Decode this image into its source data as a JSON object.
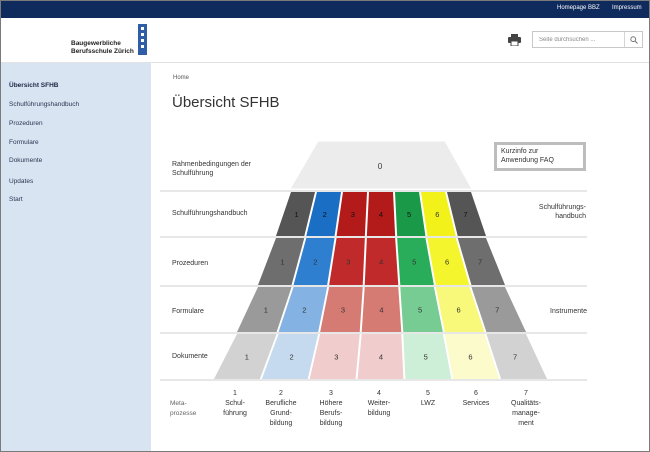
{
  "topbar": {
    "link1": "Homepage BBZ",
    "link2": "Impressum"
  },
  "header": {
    "logo_line1": "Baugewerbliche",
    "logo_line2": "Berufsschule Zürich",
    "search_placeholder": "Seite durchsuchen ..."
  },
  "sidebar": {
    "items": [
      {
        "label": "Übersicht SFHB",
        "active": true
      },
      {
        "label": "Schulführungshandbuch"
      },
      {
        "label": "Prozeduren"
      },
      {
        "label": "Formulare"
      },
      {
        "label": "Dokumente"
      },
      {
        "label": "Updates"
      },
      {
        "label": "Start"
      }
    ]
  },
  "breadcrumb": "Home",
  "page_title": "Übersicht SFHB",
  "pyramid": {
    "top_cell": "0",
    "row_labels": {
      "rahmen": [
        "Rahmenbedingungen der",
        "Schulführung"
      ],
      "sfhb": "Schulführungshandbuch",
      "prozeduren": "Prozeduren",
      "formulare": "Formulare",
      "dokumente": "Dokumente"
    },
    "right_labels": {
      "sfhb": [
        "Schulführungs-",
        "handbuch"
      ],
      "instrumente": "Instrumente"
    },
    "kurzinfo": [
      "Kurzinfo zur",
      "Anwendung FAQ"
    ],
    "cell_numbers": [
      "1",
      "2",
      "3",
      "4",
      "5",
      "6",
      "7"
    ],
    "colors": {
      "row1": [
        "#555555",
        "#1a6fc4",
        "#b31a1a",
        "#b31a1a",
        "#1a9a48",
        "#f2f21a",
        "#555555"
      ],
      "row2": [
        "#6e6e6e",
        "#2f7fd0",
        "#c12a2a",
        "#c12a2a",
        "#2aad5a",
        "#f5f52e",
        "#6e6e6e"
      ],
      "row3": [
        "#9a9a9a",
        "#84b2e2",
        "#d67a74",
        "#d67a74",
        "#76cc92",
        "#f8f87a",
        "#9a9a9a"
      ],
      "row4": [
        "#d2d2d2",
        "#c6daef",
        "#f0cccc",
        "#f0cccc",
        "#cdeed7",
        "#fbfbcc",
        "#d2d2d2"
      ],
      "top": "#ececec"
    }
  },
  "meta_label": [
    "Meta-",
    "prozesse"
  ],
  "columns": [
    {
      "num": "1",
      "lines": [
        "Schul-",
        "führung"
      ]
    },
    {
      "num": "2",
      "lines": [
        "Berufliche",
        "Grund-",
        "bildung"
      ]
    },
    {
      "num": "3",
      "lines": [
        "Höhere",
        "Berufs-",
        "bildung"
      ]
    },
    {
      "num": "4",
      "lines": [
        "Weiter-",
        "bildung"
      ]
    },
    {
      "num": "5",
      "lines": [
        "LWZ"
      ]
    },
    {
      "num": "6",
      "lines": [
        "Services"
      ]
    },
    {
      "num": "7",
      "lines": [
        "Qualitäts-",
        "manage-",
        "ment"
      ]
    }
  ]
}
